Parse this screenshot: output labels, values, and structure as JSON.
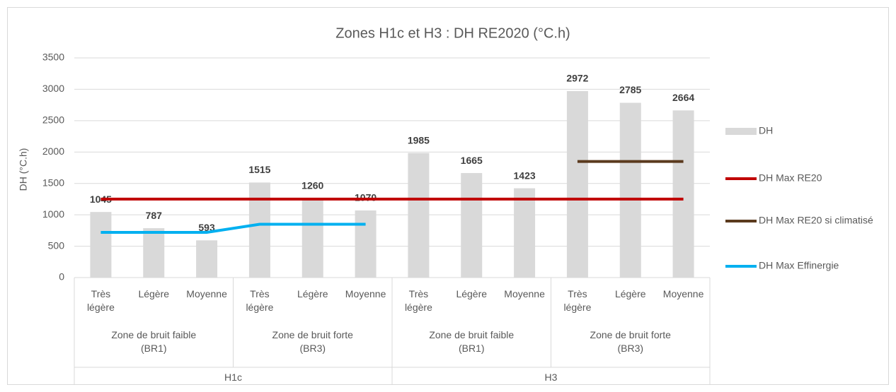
{
  "chart_data": {
    "type": "bar",
    "title": "Zones H1c et H3 : DH RE2020 (°C.h)",
    "y_label": "DH (°C.h)",
    "category_levels": [
      [
        "Très légère",
        "Légère",
        "Moyenne",
        "Très légère",
        "Légère",
        "Moyenne",
        "Très légère",
        "Légère",
        "Moyenne",
        "Très légère",
        "Légère",
        "Moyenne"
      ],
      [
        "Zone de bruit faible (BR1)",
        "Zone de bruit forte (BR3)",
        "Zone de bruit faible (BR1)",
        "Zone de bruit forte (BR3)"
      ],
      [
        "H1c",
        "H3"
      ]
    ],
    "series": [
      {
        "name": "DH",
        "type": "bar",
        "color": "#d9d9d9",
        "values": [
          1045,
          787,
          593,
          1515,
          1260,
          1070,
          1985,
          1665,
          1423,
          2972,
          2785,
          2664
        ]
      },
      {
        "name": "DH Max RE20",
        "type": "line",
        "color": "#c00000",
        "values": [
          1250,
          1250,
          1250,
          1250,
          1250,
          1250,
          1250,
          1250,
          1250,
          1250,
          1250,
          1250
        ]
      },
      {
        "name": "DH Max RE20 si climatisé",
        "type": "line",
        "color": "#5b3a1e",
        "values": [
          null,
          null,
          null,
          null,
          null,
          null,
          null,
          null,
          null,
          1850,
          1850,
          1850
        ]
      },
      {
        "name": "DH Max Effinergie",
        "type": "line",
        "color": "#00b0f0",
        "values": [
          720,
          720,
          720,
          850,
          850,
          850,
          null,
          null,
          null,
          null,
          null,
          null
        ]
      }
    ],
    "ylim": [
      0,
      3500
    ],
    "yticks": [
      0,
      500,
      1000,
      1500,
      2000,
      2500,
      3000,
      3500
    ],
    "grid": true,
    "legend": "right"
  }
}
